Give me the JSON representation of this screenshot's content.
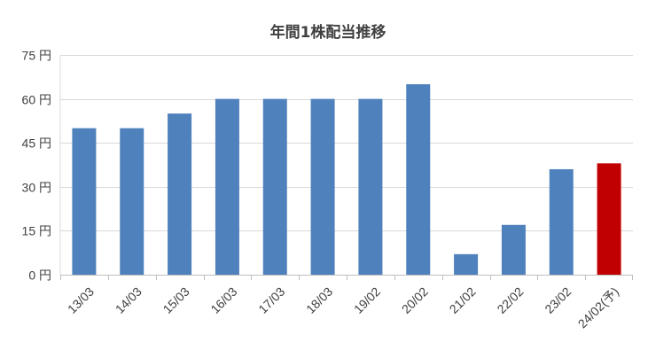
{
  "chart_data": {
    "type": "bar",
    "title": "年間1株配当推移",
    "categories": [
      "13/03",
      "14/03",
      "15/03",
      "16/03",
      "17/03",
      "18/03",
      "19/02",
      "20/02",
      "21/02",
      "22/02",
      "23/02",
      "24/02(予)"
    ],
    "values": [
      50,
      50,
      55,
      60,
      60,
      60,
      60,
      65,
      7,
      17,
      36,
      38
    ],
    "ytick_labels": [
      "0 円",
      "15 円",
      "30 円",
      "45 円",
      "60 円",
      "75 円"
    ],
    "yticks": [
      0,
      15,
      30,
      45,
      60,
      75
    ],
    "ylim": [
      0,
      75
    ],
    "grid": true,
    "bar_color": "#4f81bd",
    "highlight_color": "#c00000",
    "highlight_index": 11
  }
}
